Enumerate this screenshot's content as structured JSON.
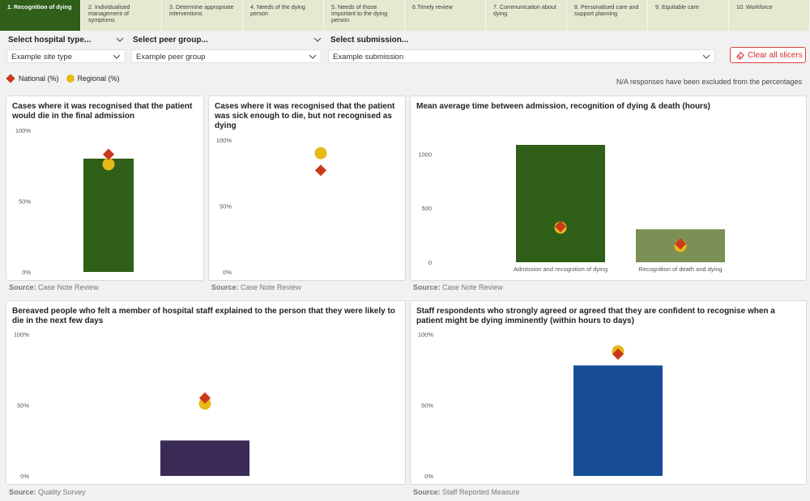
{
  "tabs": [
    {
      "label": "1. Recognition of dying",
      "active": true
    },
    {
      "label": "2. Individualised management of symptoms",
      "active": false
    },
    {
      "label": "3. Determine appropriate interventions",
      "active": false
    },
    {
      "label": "4. Needs of the dying person",
      "active": false
    },
    {
      "label": "5. Needs of those important to the dying person",
      "active": false
    },
    {
      "label": "6.Timely review",
      "active": false
    },
    {
      "label": "7. Communication about dying",
      "active": false
    },
    {
      "label": "8. Personalised care and support planning",
      "active": false
    },
    {
      "label": "9. Equitable care",
      "active": false
    },
    {
      "label": "10. Workforce",
      "active": false
    }
  ],
  "slicers": {
    "hospital_type": {
      "label": "Select hospital type...",
      "value": "Example site type"
    },
    "peer_group": {
      "label": "Select peer group...",
      "value": "Example peer group"
    },
    "submission": {
      "label": "Select submission...",
      "value": "Example submission"
    },
    "clear_label": "Clear all slicers"
  },
  "legend": {
    "national": "National (%)",
    "regional": "Regional (%)",
    "na_note": "N/A responses have been excluded from the percentages"
  },
  "colors": {
    "national_marker": "#c93a1b",
    "regional_marker": "#e7b919",
    "dark_green": "#2f5f18",
    "light_green": "#7c8f55",
    "purple": "#3a2b56",
    "blue": "#174d96",
    "active_tab": "#2f5f18",
    "tab_bg": "#e4ead0"
  },
  "source_prefix": "Source:",
  "cards": [
    {
      "title": "Cases where it was recognised that the patient would die in the final admission",
      "source": "Case Note Review",
      "chart_data": {
        "type": "bar",
        "yticks": [
          "0%",
          "50%",
          "100%"
        ],
        "ylim": [
          0,
          100
        ],
        "bars": [
          {
            "value": 80,
            "color": "#2f5f18"
          }
        ],
        "national": 83,
        "regional": 76
      }
    },
    {
      "title": "Cases where it was recognised that the patient was sick enough to die, but not recognised as dying",
      "source": "Case Note Review",
      "chart_data": {
        "type": "bar",
        "yticks": [
          "0%",
          "50%",
          "100%"
        ],
        "ylim": [
          0,
          100
        ],
        "bars": [],
        "national": 77,
        "regional": 90
      }
    },
    {
      "title": "Mean average time between admission, recognition of dying & death (hours)",
      "source": "Case Note Review",
      "chart_data": {
        "type": "bar",
        "yticks": [
          "0",
          "500",
          "1000"
        ],
        "ylim": [
          0,
          1100
        ],
        "categories": [
          "Admission and recognition of dying",
          "Recognition of death and dying"
        ],
        "bars": [
          {
            "value": 1085,
            "color": "#2f5f18"
          },
          {
            "value": 305,
            "color": "#7c8f55"
          }
        ],
        "national": [
          330,
          170
        ],
        "regional": [
          320,
          150
        ]
      }
    },
    {
      "title": "Bereaved people who felt a member of hospital staff explained to the person that they were likely to die in the next few days",
      "source": "Quality Survey",
      "chart_data": {
        "type": "bar",
        "yticks": [
          "0%",
          "50%",
          "100%"
        ],
        "ylim": [
          0,
          100
        ],
        "bars": [
          {
            "value": 25,
            "color": "#3a2b56"
          }
        ],
        "national": 55,
        "regional": 51
      }
    },
    {
      "title": "Staff respondents who strongly agreed or agreed that they are confident to recognise when a patient might be dying imminently (within hours to days)",
      "source": "Staff Reported Measure",
      "chart_data": {
        "type": "bar",
        "yticks": [
          "0%",
          "50%",
          "100%"
        ],
        "ylim": [
          0,
          100
        ],
        "bars": [
          {
            "value": 78,
            "color": "#174d96"
          }
        ],
        "national": 86,
        "regional": 88
      }
    }
  ]
}
